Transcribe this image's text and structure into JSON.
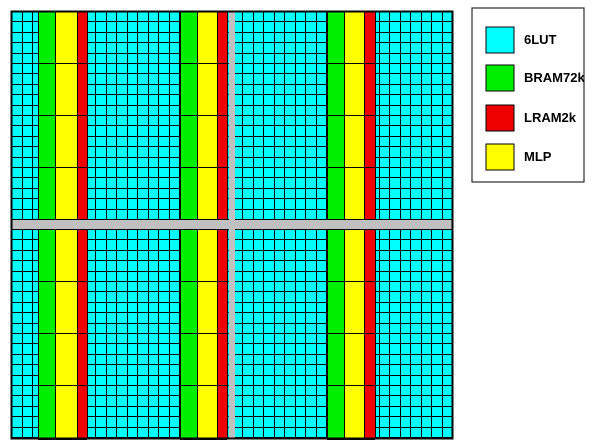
{
  "colors": {
    "lut": "#00ffff",
    "bram": "#00ee00",
    "lram": "#ee0000",
    "mlp": "#ffff00",
    "routing": "#c0c0c0",
    "grid_line": "#000000",
    "background": "#ffffff"
  },
  "legend": [
    {
      "key": "lut",
      "label": "6LUT"
    },
    {
      "key": "bram",
      "label": "BRAM72k"
    },
    {
      "key": "lram",
      "label": "LRAM2k"
    },
    {
      "key": "mlp",
      "label": "MLP"
    }
  ]
}
